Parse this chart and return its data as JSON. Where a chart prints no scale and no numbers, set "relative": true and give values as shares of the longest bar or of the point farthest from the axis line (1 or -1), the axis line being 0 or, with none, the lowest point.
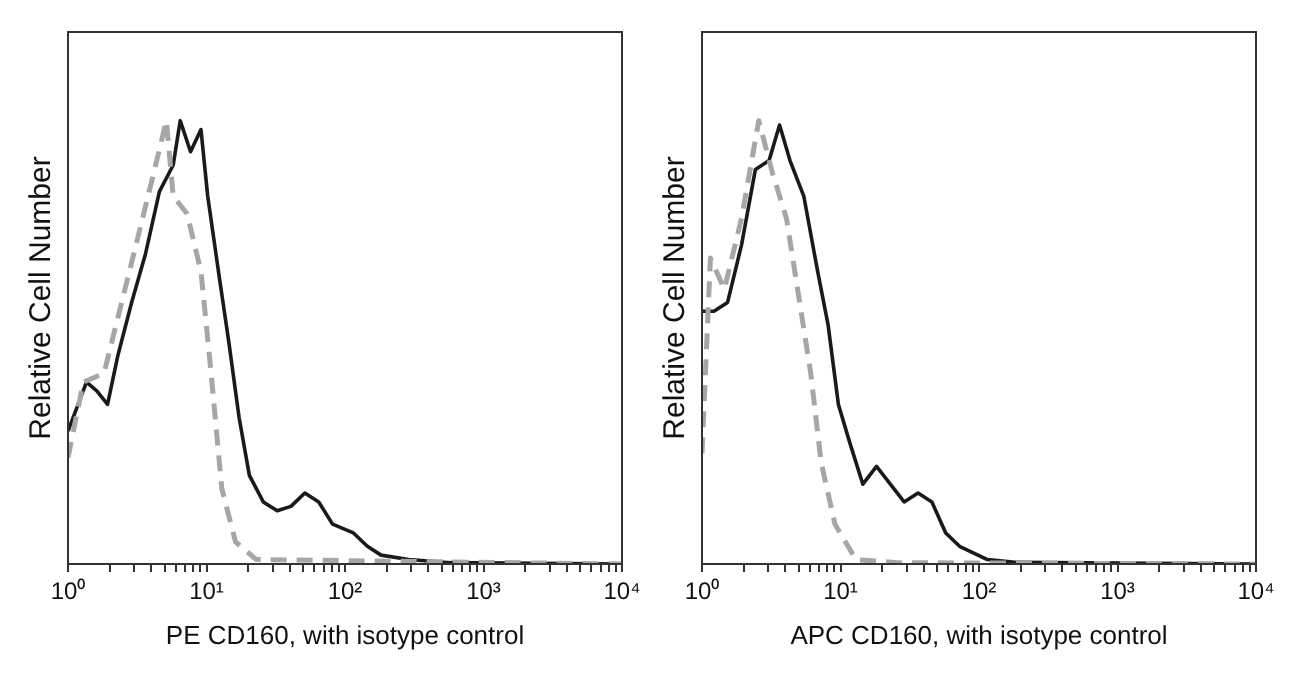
{
  "chart_data": [
    {
      "type": "line",
      "relative": true,
      "xlabel": "PE CD160, with isotype control",
      "ylabel": "Relative Cell Number",
      "log": "x",
      "xlim": [
        1,
        10000
      ],
      "xticks": [
        {
          "value": 1,
          "label": "10⁰"
        },
        {
          "value": 2,
          "label": null
        },
        {
          "value": 3,
          "label": null
        },
        {
          "value": 4,
          "label": null
        },
        {
          "value": 5,
          "label": null
        },
        {
          "value": 6,
          "label": null
        },
        {
          "value": 7,
          "label": null
        },
        {
          "value": 8,
          "label": null
        },
        {
          "value": 9,
          "label": null
        },
        {
          "value": 10,
          "label": "10¹"
        },
        {
          "value": 20,
          "label": null
        },
        {
          "value": 30,
          "label": null
        },
        {
          "value": 40,
          "label": null
        },
        {
          "value": 50,
          "label": null
        },
        {
          "value": 60,
          "label": null
        },
        {
          "value": 70,
          "label": null
        },
        {
          "value": 80,
          "label": null
        },
        {
          "value": 90,
          "label": null
        },
        {
          "value": 100,
          "label": "10²"
        },
        {
          "value": 200,
          "label": null
        },
        {
          "value": 300,
          "label": null
        },
        {
          "value": 400,
          "label": null
        },
        {
          "value": 500,
          "label": null
        },
        {
          "value": 600,
          "label": null
        },
        {
          "value": 700,
          "label": null
        },
        {
          "value": 800,
          "label": null
        },
        {
          "value": 900,
          "label": null
        },
        {
          "value": 1000,
          "label": "10³"
        },
        {
          "value": 2000,
          "label": null
        },
        {
          "value": 3000,
          "label": null
        },
        {
          "value": 4000,
          "label": null
        },
        {
          "value": 5000,
          "label": null
        },
        {
          "value": 6000,
          "label": null
        },
        {
          "value": 7000,
          "label": null
        },
        {
          "value": 8000,
          "label": null
        },
        {
          "value": 9000,
          "label": null
        },
        {
          "value": 10000,
          "label": "10⁴"
        }
      ],
      "tick_labels": "x",
      "grid": false,
      "legend": false,
      "marker": "none",
      "series": [
        {
          "color": "#a6a6a6",
          "line_style": "dashed",
          "x": [
            1,
            1.29,
            1.82,
            2.88,
            4.07,
            5.13,
            5.75,
            7.24,
            9.12,
            10.8,
            12.9,
            16.2,
            22.9,
            10000
          ],
          "values": [
            0.24,
            0.41,
            0.43,
            0.68,
            0.87,
            1.0,
            0.83,
            0.79,
            0.66,
            0.43,
            0.17,
            0.05,
            0.01,
            0
          ]
        },
        {
          "color": "#1a1a1a",
          "line_style": "solid",
          "x": [
            1,
            1.15,
            1.36,
            1.62,
            1.93,
            2.29,
            2.88,
            3.63,
            4.57,
            5.75,
            6.46,
            7.67,
            9.12,
            10.2,
            12.2,
            14.5,
            17.2,
            20.4,
            25.7,
            32.4,
            40.7,
            51.3,
            64.6,
            81.3,
            115,
            145,
            182,
            288,
            575,
            10000
          ],
          "values": [
            0.3,
            0.35,
            0.41,
            0.39,
            0.36,
            0.47,
            0.59,
            0.7,
            0.84,
            0.9,
            1.0,
            0.93,
            0.98,
            0.83,
            0.66,
            0.5,
            0.33,
            0.2,
            0.14,
            0.12,
            0.13,
            0.16,
            0.14,
            0.09,
            0.07,
            0.04,
            0.02,
            0.01,
            0.003,
            0
          ]
        }
      ]
    },
    {
      "type": "line",
      "relative": true,
      "xlabel": "APC CD160, with isotype control",
      "ylabel": "Relative Cell Number",
      "log": "x",
      "xlim": [
        1,
        10000
      ],
      "xticks": [
        {
          "value": 1,
          "label": "10⁰"
        },
        {
          "value": 2,
          "label": null
        },
        {
          "value": 3,
          "label": null
        },
        {
          "value": 4,
          "label": null
        },
        {
          "value": 5,
          "label": null
        },
        {
          "value": 6,
          "label": null
        },
        {
          "value": 7,
          "label": null
        },
        {
          "value": 8,
          "label": null
        },
        {
          "value": 9,
          "label": null
        },
        {
          "value": 10,
          "label": "10¹"
        },
        {
          "value": 20,
          "label": null
        },
        {
          "value": 30,
          "label": null
        },
        {
          "value": 40,
          "label": null
        },
        {
          "value": 50,
          "label": null
        },
        {
          "value": 60,
          "label": null
        },
        {
          "value": 70,
          "label": null
        },
        {
          "value": 80,
          "label": null
        },
        {
          "value": 90,
          "label": null
        },
        {
          "value": 100,
          "label": "10²"
        },
        {
          "value": 200,
          "label": null
        },
        {
          "value": 300,
          "label": null
        },
        {
          "value": 400,
          "label": null
        },
        {
          "value": 500,
          "label": null
        },
        {
          "value": 600,
          "label": null
        },
        {
          "value": 700,
          "label": null
        },
        {
          "value": 800,
          "label": null
        },
        {
          "value": 900,
          "label": null
        },
        {
          "value": 1000,
          "label": "10³"
        },
        {
          "value": 2000,
          "label": null
        },
        {
          "value": 3000,
          "label": null
        },
        {
          "value": 4000,
          "label": null
        },
        {
          "value": 5000,
          "label": null
        },
        {
          "value": 6000,
          "label": null
        },
        {
          "value": 7000,
          "label": null
        },
        {
          "value": 8000,
          "label": null
        },
        {
          "value": 9000,
          "label": null
        },
        {
          "value": 10000,
          "label": "10⁴"
        }
      ],
      "tick_labels": "x",
      "grid": false,
      "legend": false,
      "marker": "none",
      "series": [
        {
          "color": "#a6a6a6",
          "line_style": "dashed",
          "x": [
            1,
            1.15,
            1.45,
            1.93,
            2.57,
            3.24,
            4.07,
            5.13,
            6.1,
            7.24,
            9.12,
            12.9,
            25.7,
            10000
          ],
          "values": [
            0.25,
            0.69,
            0.62,
            0.78,
            1.0,
            0.88,
            0.78,
            0.58,
            0.43,
            0.23,
            0.09,
            0.01,
            0.003,
            0
          ]
        },
        {
          "color": "#1a1a1a",
          "line_style": "solid",
          "x": [
            1,
            1.22,
            1.53,
            1.93,
            2.43,
            3.05,
            3.63,
            4.32,
            5.43,
            6.84,
            8.13,
            9.66,
            11.5,
            14.5,
            18.2,
            22.9,
            28.8,
            36.3,
            45.7,
            57.5,
            72.4,
            115,
            182,
            10000
          ],
          "values": [
            0.57,
            0.57,
            0.59,
            0.72,
            0.89,
            0.91,
            0.99,
            0.91,
            0.83,
            0.66,
            0.54,
            0.36,
            0.28,
            0.18,
            0.22,
            0.18,
            0.14,
            0.16,
            0.14,
            0.07,
            0.04,
            0.01,
            0.004,
            0
          ]
        }
      ]
    }
  ]
}
